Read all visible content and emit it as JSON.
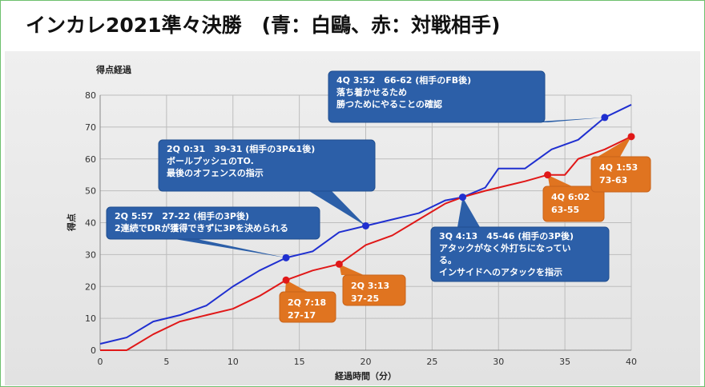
{
  "slide": {
    "title": "インカレ2021準々決勝　(青：白鷗、赤：対戦相手)"
  },
  "chart_data": {
    "type": "line",
    "title": "得点経過",
    "xlabel": "経過時間（分）",
    "ylabel": "得点",
    "xlim": [
      0,
      40
    ],
    "ylim": [
      0,
      80
    ],
    "x_ticks": [
      0,
      5,
      10,
      15,
      20,
      25,
      30,
      35,
      40
    ],
    "y_ticks": [
      0,
      10,
      20,
      30,
      40,
      50,
      60,
      70,
      80
    ],
    "grid": true,
    "series": [
      {
        "color": "#1f2fd0",
        "points": [
          [
            0,
            2
          ],
          [
            2,
            4
          ],
          [
            4,
            9
          ],
          [
            6,
            11
          ],
          [
            8,
            14
          ],
          [
            10,
            20
          ],
          [
            12,
            25
          ],
          [
            14,
            29
          ],
          [
            16,
            31
          ],
          [
            18,
            37
          ],
          [
            20,
            39
          ],
          [
            22,
            41
          ],
          [
            24,
            43
          ],
          [
            26,
            47
          ],
          [
            27.3,
            48
          ],
          [
            29,
            51
          ],
          [
            30,
            57
          ],
          [
            32,
            57
          ],
          [
            34,
            63
          ],
          [
            36,
            66
          ],
          [
            38,
            73
          ],
          [
            40,
            77
          ]
        ]
      },
      {
        "color": "#e01818",
        "points": [
          [
            0,
            0
          ],
          [
            2,
            0
          ],
          [
            4,
            5
          ],
          [
            6,
            9
          ],
          [
            8,
            11
          ],
          [
            10,
            13
          ],
          [
            12,
            17
          ],
          [
            14,
            22
          ],
          [
            16,
            25
          ],
          [
            18,
            27
          ],
          [
            20,
            33
          ],
          [
            22,
            36
          ],
          [
            24,
            41
          ],
          [
            26,
            46
          ],
          [
            27.3,
            48
          ],
          [
            29,
            50
          ],
          [
            32,
            53
          ],
          [
            33.7,
            55
          ],
          [
            35,
            55
          ],
          [
            36,
            60
          ],
          [
            38,
            63
          ],
          [
            40,
            67
          ]
        ]
      }
    ],
    "annotations": [
      {
        "kind": "blue",
        "marker": [
          14,
          29
        ],
        "lines": [
          "2Q 5:57　27-22 (相手の3P後)",
          "2連続でDRが獲得できずに3Pを決められる"
        ]
      },
      {
        "kind": "blue",
        "marker": [
          20,
          39
        ],
        "lines": [
          "2Q 0:31　39-31 (相手の3P&1後)",
          "ボールプッシュのTO.",
          "最後のオフェンスの指示"
        ]
      },
      {
        "kind": "blue",
        "marker": [
          27.3,
          48
        ],
        "lines": [
          "3Q 4:13　45-46 (相手の3P後)",
          "アタックがなく外打ちになってい",
          "る。",
          "インサイドへのアタックを指示"
        ]
      },
      {
        "kind": "blue",
        "marker": [
          38,
          73
        ],
        "lines": [
          "4Q 3:52　66-62 (相手のFB後)",
          "落ち着かせるため",
          "勝つためにやることの確認"
        ]
      },
      {
        "kind": "orange",
        "marker": [
          14,
          22
        ],
        "lines": [
          "2Q  7:18",
          "27-17"
        ]
      },
      {
        "kind": "orange",
        "marker": [
          18,
          27
        ],
        "lines": [
          "2Q 3:13",
          "37-25"
        ]
      },
      {
        "kind": "orange",
        "marker": [
          33.7,
          55
        ],
        "lines": [
          "4Q 6:02",
          "63-55"
        ]
      },
      {
        "kind": "orange",
        "marker": [
          40,
          67
        ],
        "lines": [
          "4Q 1:53",
          "73-63"
        ]
      }
    ]
  }
}
